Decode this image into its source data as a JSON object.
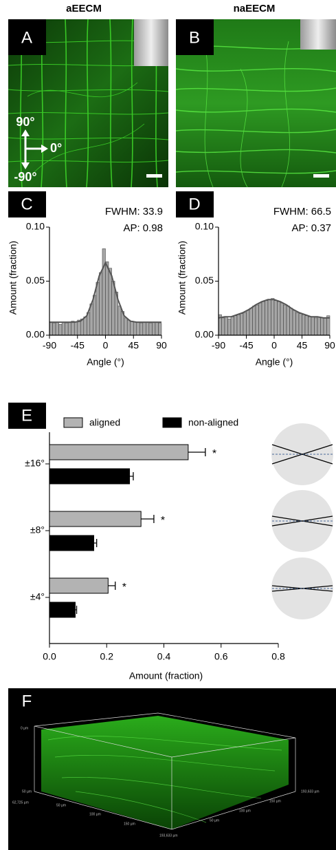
{
  "figure": {
    "titles": [
      "aEECM",
      "naEECM"
    ],
    "panels": [
      "A",
      "B",
      "F"
    ],
    "directions": [
      "90°",
      "0°",
      "-90°"
    ],
    "f_labels": [
      "0 µm",
      "50 µm",
      "62,725 µm",
      "50 µm",
      "100 µm",
      "150 µm",
      "193,633 µm",
      "193,633 µm",
      "150 µm",
      "100 µm",
      "50 µm"
    ]
  },
  "chart_data": [
    {
      "type": "histogram",
      "panel": "C",
      "bins": [
        -90,
        -85,
        -80,
        -75,
        -70,
        -65,
        -60,
        -55,
        -50,
        -45,
        -40,
        -35,
        -30,
        -25,
        -20,
        -15,
        -10,
        -5,
        0,
        5,
        10,
        15,
        20,
        25,
        30,
        35,
        40,
        45,
        50,
        55,
        60,
        65,
        70,
        75,
        80,
        85,
        90
      ],
      "values": [
        0.012,
        0.011,
        0.012,
        0.01,
        0.012,
        0.011,
        0.012,
        0.013,
        0.012,
        0.014,
        0.015,
        0.017,
        0.021,
        0.029,
        0.037,
        0.049,
        0.058,
        0.08,
        0.068,
        0.062,
        0.05,
        0.04,
        0.027,
        0.022,
        0.016,
        0.014,
        0.013,
        0.012,
        0.012,
        0.011,
        0.012,
        0.012,
        0.011,
        0.012,
        0.012,
        0.011
      ],
      "color": "#a6a6a6",
      "fit": {
        "x": [
          -90,
          -80,
          -70,
          -60,
          -50,
          -40,
          -30,
          -20,
          -10,
          0,
          10,
          20,
          30,
          40,
          50,
          60,
          70,
          80,
          90
        ],
        "values": [
          0.012,
          0.012,
          0.012,
          0.012,
          0.012,
          0.013,
          0.018,
          0.033,
          0.055,
          0.067,
          0.055,
          0.033,
          0.018,
          0.013,
          0.012,
          0.012,
          0.012,
          0.012,
          0.012
        ],
        "color": "#555555"
      },
      "xlim": [
        -90,
        90
      ],
      "xticks": [
        -90,
        -45,
        0,
        45,
        90
      ],
      "ylim": [
        0,
        0.1
      ],
      "yticks": [
        {
          "value": 0,
          "label": "0.00"
        },
        {
          "value": 0.05,
          "label": "0.05"
        },
        {
          "value": 0.1,
          "label": "0.10"
        }
      ],
      "xlabel": "Angle (°)",
      "ylabel": "Amount (fraction)",
      "annotations": [
        "FWHM: 33.9",
        "AP: 0.98"
      ]
    },
    {
      "type": "histogram",
      "panel": "D",
      "bins": [
        -90,
        -85,
        -80,
        -75,
        -70,
        -65,
        -60,
        -55,
        -50,
        -45,
        -40,
        -35,
        -30,
        -25,
        -20,
        -15,
        -10,
        -5,
        0,
        5,
        10,
        15,
        20,
        25,
        30,
        35,
        40,
        45,
        50,
        55,
        60,
        65,
        70,
        75,
        80,
        85,
        90
      ],
      "values": [
        0.019,
        0.016,
        0.017,
        0.015,
        0.017,
        0.018,
        0.019,
        0.02,
        0.021,
        0.023,
        0.025,
        0.027,
        0.028,
        0.03,
        0.031,
        0.032,
        0.033,
        0.034,
        0.032,
        0.031,
        0.03,
        0.028,
        0.027,
        0.025,
        0.023,
        0.021,
        0.02,
        0.019,
        0.018,
        0.017,
        0.017,
        0.016,
        0.017,
        0.016,
        0.016,
        0.018
      ],
      "color": "#a6a6a6",
      "fit": {
        "x": [
          -90,
          -80,
          -70,
          -60,
          -50,
          -40,
          -30,
          -20,
          -10,
          0,
          10,
          20,
          30,
          40,
          50,
          60,
          70,
          80,
          90
        ],
        "values": [
          0.016,
          0.017,
          0.017,
          0.019,
          0.021,
          0.024,
          0.028,
          0.031,
          0.033,
          0.033,
          0.031,
          0.028,
          0.024,
          0.021,
          0.019,
          0.017,
          0.017,
          0.016,
          0.016
        ],
        "color": "#555555"
      },
      "xlim": [
        -90,
        90
      ],
      "xticks": [
        -90,
        -45,
        0,
        45,
        90
      ],
      "ylim": [
        0,
        0.1
      ],
      "yticks": [
        {
          "value": 0,
          "label": "0.00"
        },
        {
          "value": 0.05,
          "label": "0.05"
        },
        {
          "value": 0.1,
          "label": "0.10"
        }
      ],
      "xlabel": "Angle (°)",
      "ylabel": "Amount (fraction)",
      "annotations": [
        "FWHM: 66.5",
        "AP: 0.37"
      ]
    },
    {
      "type": "bar",
      "panel": "E",
      "orientation": "horizontal",
      "categories": [
        "±16°",
        "±8°",
        "±4°"
      ],
      "series": [
        {
          "name": "aligned",
          "color": "#b3b3b3",
          "values": [
            0.485,
            0.32,
            0.205
          ],
          "errors": [
            0.06,
            0.045,
            0.025
          ],
          "annotations": [
            "*",
            "*",
            "*"
          ]
        },
        {
          "name": "non-aligned",
          "color": "#000000",
          "values": [
            0.28,
            0.155,
            0.09
          ],
          "errors": [
            0.013,
            0.01,
            0.005
          ]
        }
      ],
      "xlim": [
        0,
        0.8
      ],
      "xticks": [
        {
          "value": 0,
          "label": "0.0"
        },
        {
          "value": 0.2,
          "label": "0.2"
        },
        {
          "value": 0.4,
          "label": "0.4"
        },
        {
          "value": 0.6,
          "label": "0.6"
        },
        {
          "value": 0.8,
          "label": "0.8"
        }
      ],
      "xlabel": "Amount (fraction)"
    }
  ]
}
